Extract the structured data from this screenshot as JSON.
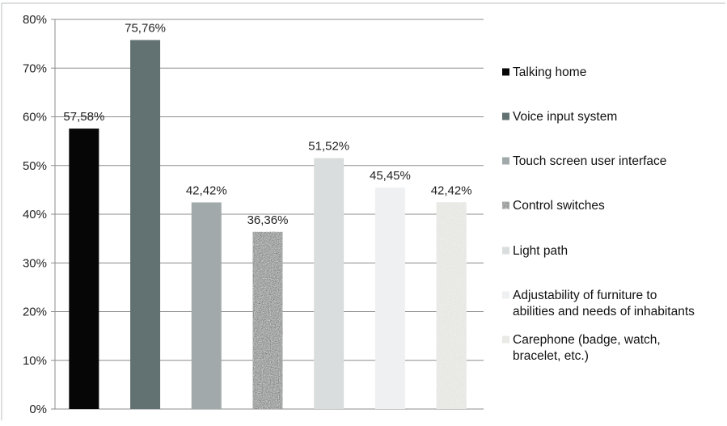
{
  "chart_data": {
    "type": "bar",
    "y_ticks": [
      "0%",
      "10%",
      "20%",
      "30%",
      "40%",
      "50%",
      "60%",
      "70%",
      "80%"
    ],
    "ylim": [
      0,
      80
    ],
    "grid": true,
    "legend_position": "right",
    "series": [
      {
        "name": "Talking home",
        "value": 57.58,
        "label": "57,58%",
        "color": "#060606",
        "pattern": "solid"
      },
      {
        "name": "Voice input system",
        "value": 75.76,
        "label": "75,76%",
        "color": "#627172",
        "pattern": "solid"
      },
      {
        "name": "Touch screen user interface",
        "value": 42.42,
        "label": "42,42%",
        "color": "#a1a9aa",
        "pattern": "solid"
      },
      {
        "name": "Control switches",
        "value": 36.36,
        "label": "36,36%",
        "color": "#8d9090",
        "pattern": "speckle-dark"
      },
      {
        "name": "Light path",
        "value": 51.52,
        "label": "51,52%",
        "color": "#d9dddd",
        "pattern": "solid"
      },
      {
        "name": "Adjustability of furniture to abilities and needs of inhabitants",
        "name_lines": [
          "Adjustability of furniture to",
          "abilities and needs of inhabitants"
        ],
        "value": 45.45,
        "label": "45,45%",
        "color": "#eef0f1",
        "pattern": "solid"
      },
      {
        "name": "Carephone (badge, watch, bracelet, etc.)",
        "name_lines": [
          "Carephone (badge,  watch,",
          "bracelet, etc.)"
        ],
        "value": 42.42,
        "label": "42,42%",
        "color": "#e6e6e1",
        "pattern": "speckle-light"
      }
    ]
  }
}
